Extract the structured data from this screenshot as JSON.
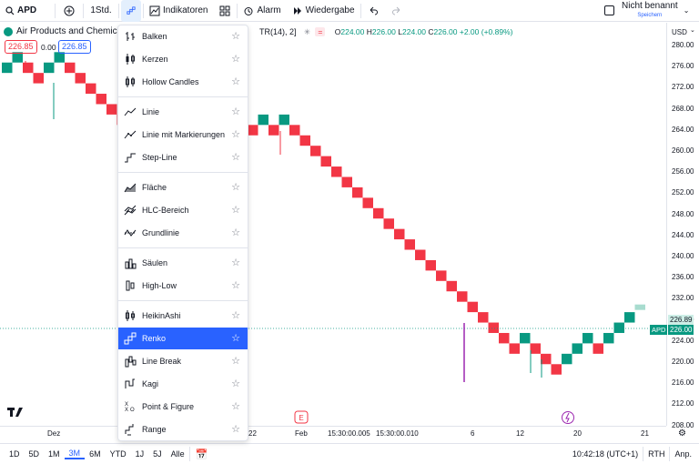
{
  "toolbar": {
    "symbol": "APD",
    "interval": "1Std.",
    "indicators": "Indikatoren",
    "alarm": "Alarm",
    "replay": "Wiedergabe",
    "layout_name": "Nicht benannt",
    "save_hint": "Speichern"
  },
  "legend": {
    "title": "Air Products and Chemic",
    "tr_label": "TR(14), 2]",
    "o_label": "O",
    "o": "224.00",
    "h_label": "H",
    "h": "226.00",
    "l_label": "L",
    "l": "224.00",
    "c_label": "C",
    "c": "226.00",
    "change": "+2.00 (+0.89%)",
    "sell_price": "226.85",
    "spread": "0.00",
    "buy_price": "226.85"
  },
  "chart_type_menu": {
    "selected": "Renko",
    "items": [
      {
        "label": "Balken",
        "icon": "bars-icon"
      },
      {
        "label": "Kerzen",
        "icon": "candles-icon"
      },
      {
        "label": "Hollow Candles",
        "icon": "hollow-candles-icon"
      },
      {
        "label": "Linie",
        "icon": "line-icon"
      },
      {
        "label": "Linie mit Markierungen",
        "icon": "line-markers-icon"
      },
      {
        "label": "Step-Line",
        "icon": "step-line-icon"
      },
      {
        "label": "Fläche",
        "icon": "area-icon"
      },
      {
        "label": "HLC-Bereich",
        "icon": "hlc-area-icon"
      },
      {
        "label": "Grundlinie",
        "icon": "baseline-icon"
      },
      {
        "label": "Säulen",
        "icon": "columns-icon"
      },
      {
        "label": "High-Low",
        "icon": "high-low-icon"
      },
      {
        "label": "HeikinAshi",
        "icon": "heikin-ashi-icon"
      },
      {
        "label": "Renko",
        "icon": "renko-icon"
      },
      {
        "label": "Line Break",
        "icon": "line-break-icon"
      },
      {
        "label": "Kagi",
        "icon": "kagi-icon"
      },
      {
        "label": "Point & Figure",
        "icon": "point-figure-icon"
      },
      {
        "label": "Range",
        "icon": "range-icon"
      }
    ]
  },
  "price_axis": {
    "currency": "USD",
    "ticks": [
      "280.00",
      "276.00",
      "272.00",
      "268.00",
      "264.00",
      "260.00",
      "256.00",
      "252.00",
      "248.00",
      "244.00",
      "240.00",
      "236.00",
      "232.00",
      "228.00",
      "224.00",
      "220.00",
      "216.00",
      "212.00",
      "208.00"
    ],
    "last_price": "226.00",
    "last_symbol": "APD",
    "ref_price": "226.89"
  },
  "time_axis": {
    "ticks": [
      "Dez",
      "22",
      "Feb",
      "15:30:00.005",
      "15:30:00.010",
      "6",
      "12",
      "20",
      "21"
    ]
  },
  "bottom_bar": {
    "ranges": [
      "1D",
      "5D",
      "1M",
      "3M",
      "6M",
      "YTD",
      "1J",
      "5J",
      "Alle"
    ],
    "active_range": "3M",
    "clock": "10:42:18 (UTC+1)",
    "session": "RTH",
    "adjust": "Anp."
  },
  "colors": {
    "up": "#089981",
    "down": "#f23645",
    "accent": "#2962ff"
  },
  "chart_data": {
    "type": "renko",
    "brick_size": 2,
    "bricks_visible_left": [
      {
        "dir": "up",
        "low": 272,
        "high": 274
      },
      {
        "dir": "up",
        "low": 274,
        "high": 276
      },
      {
        "dir": "down",
        "low": 272,
        "high": 274
      },
      {
        "dir": "down",
        "low": 270,
        "high": 272
      },
      {
        "dir": "up",
        "low": 272,
        "high": 274
      },
      {
        "dir": "up",
        "low": 274,
        "high": 276
      },
      {
        "dir": "down",
        "low": 272,
        "high": 274
      },
      {
        "dir": "down",
        "low": 270,
        "high": 272
      },
      {
        "dir": "down",
        "low": 268,
        "high": 270
      },
      {
        "dir": "down",
        "low": 266,
        "high": 268
      },
      {
        "dir": "down",
        "low": 264,
        "high": 266
      },
      {
        "dir": "down",
        "low": 262,
        "high": 264
      }
    ],
    "bricks_visible_right": [
      {
        "dir": "down",
        "low": 260,
        "high": 262
      },
      {
        "dir": "up",
        "low": 262,
        "high": 264
      },
      {
        "dir": "down",
        "low": 260,
        "high": 262
      },
      {
        "dir": "up",
        "low": 262,
        "high": 264
      },
      {
        "dir": "down",
        "low": 260,
        "high": 262
      },
      {
        "dir": "down",
        "low": 258,
        "high": 260
      },
      {
        "dir": "down",
        "low": 256,
        "high": 258
      },
      {
        "dir": "down",
        "low": 254,
        "high": 256
      },
      {
        "dir": "down",
        "low": 252,
        "high": 254
      },
      {
        "dir": "down",
        "low": 250,
        "high": 252
      },
      {
        "dir": "down",
        "low": 248,
        "high": 250
      },
      {
        "dir": "down",
        "low": 246,
        "high": 248
      },
      {
        "dir": "down",
        "low": 244,
        "high": 246
      },
      {
        "dir": "down",
        "low": 242,
        "high": 244
      },
      {
        "dir": "down",
        "low": 240,
        "high": 242
      },
      {
        "dir": "down",
        "low": 238,
        "high": 240
      },
      {
        "dir": "down",
        "low": 236,
        "high": 238
      },
      {
        "dir": "down",
        "low": 234,
        "high": 236
      },
      {
        "dir": "down",
        "low": 232,
        "high": 234
      },
      {
        "dir": "down",
        "low": 230,
        "high": 232
      },
      {
        "dir": "down",
        "low": 228,
        "high": 230
      },
      {
        "dir": "down",
        "low": 226,
        "high": 228
      },
      {
        "dir": "down",
        "low": 224,
        "high": 226
      },
      {
        "dir": "down",
        "low": 222,
        "high": 224
      },
      {
        "dir": "down",
        "low": 220,
        "high": 222
      },
      {
        "dir": "down",
        "low": 218,
        "high": 220
      },
      {
        "dir": "up",
        "low": 220,
        "high": 222
      },
      {
        "dir": "down",
        "low": 218,
        "high": 220
      },
      {
        "dir": "down",
        "low": 216,
        "high": 218
      },
      {
        "dir": "down",
        "low": 214,
        "high": 216
      },
      {
        "dir": "up",
        "low": 216,
        "high": 218
      },
      {
        "dir": "up",
        "low": 218,
        "high": 220
      },
      {
        "dir": "up",
        "low": 220,
        "high": 222
      },
      {
        "dir": "down",
        "low": 218,
        "high": 220
      },
      {
        "dir": "up",
        "low": 220,
        "high": 222
      },
      {
        "dir": "up",
        "low": 222,
        "high": 224
      },
      {
        "dir": "up",
        "low": 224,
        "high": 226
      }
    ],
    "ylim": [
      208,
      282
    ]
  }
}
